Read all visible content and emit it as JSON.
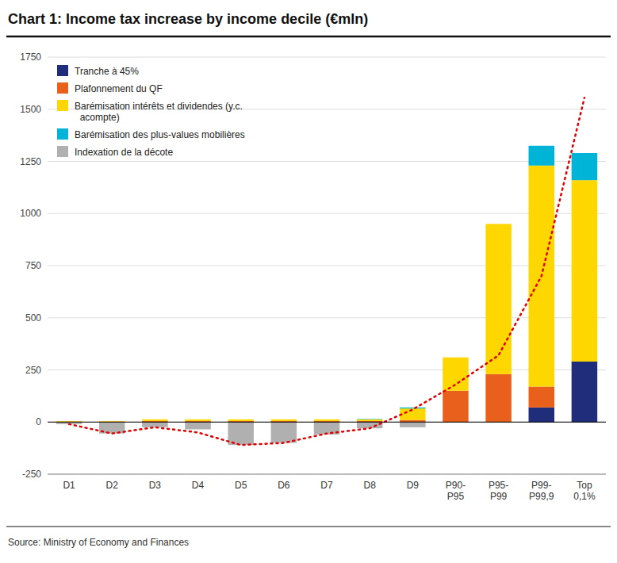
{
  "chart_data": {
    "type": "bar",
    "stacked": true,
    "title": "Chart 1: Income tax increase by income decile (€mln)",
    "subtitle": "Source: Ministry of Economy and Finances",
    "categories": [
      "D1",
      "D2",
      "D3",
      "D4",
      "D5",
      "D6",
      "D7",
      "D8",
      "D9",
      "P90-\nP95",
      "P95-\nP99",
      "P99-\nP99,9",
      "Top\n0,1%"
    ],
    "series": [
      {
        "name": "Tranche à 45%",
        "color": "#1f2d7b",
        "values": [
          0,
          0,
          0,
          0,
          0,
          0,
          0,
          0,
          0,
          0,
          0,
          70,
          290
        ]
      },
      {
        "name": "Plafonnement du QF",
        "color": "#e8601c",
        "values": [
          2,
          2,
          5,
          5,
          5,
          5,
          5,
          5,
          10,
          150,
          230,
          100,
          0
        ]
      },
      {
        "name": "Barémisation intérêts et dividendes (y.c.\n  acompte)",
        "color": "#ffd700",
        "values": [
          3,
          3,
          8,
          8,
          8,
          8,
          8,
          8,
          55,
          160,
          720,
          1060,
          870
        ]
      },
      {
        "name": "Barémisation des plus-values mobilières",
        "color": "#00b4d8",
        "values": [
          0,
          0,
          0,
          0,
          0,
          0,
          0,
          2,
          5,
          0,
          0,
          95,
          130
        ]
      },
      {
        "name": "Indexation de la décote",
        "color": "#b0b0b0",
        "values": [
          -10,
          -55,
          -25,
          -35,
          -110,
          -100,
          -60,
          -30,
          -25,
          0,
          0,
          0,
          0
        ]
      },
      {
        "type": "line",
        "color": "#e00000",
        "line_style": "dotted",
        "values": [
          -10,
          -55,
          -25,
          -50,
          -110,
          -100,
          -55,
          -30,
          60,
          180,
          320,
          700,
          1555
        ]
      }
    ],
    "ylim": [
      -250,
      1750
    ],
    "yticks": [
      -250,
      0,
      250,
      500,
      750,
      1000,
      1250,
      1500,
      1750
    ],
    "grid": true,
    "legend": "upper left"
  }
}
